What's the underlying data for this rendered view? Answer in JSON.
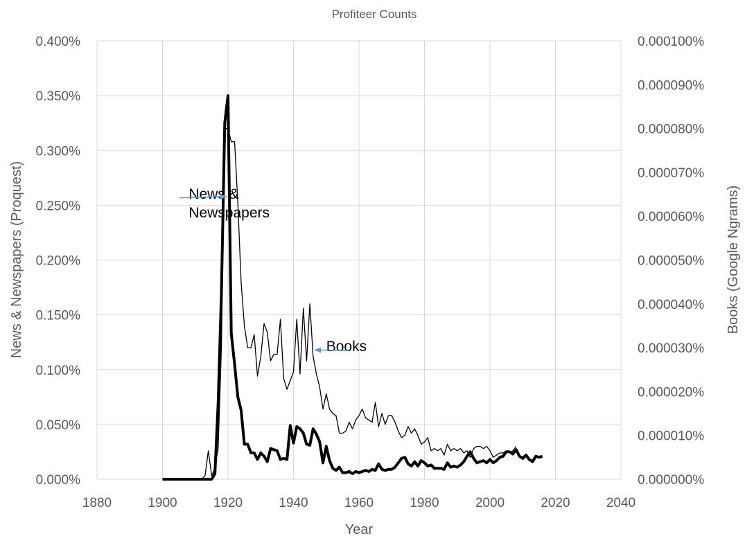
{
  "chart_data": {
    "type": "line",
    "title": "Profiteer Counts",
    "xlabel": "Year",
    "ylabel_left": "News & Newspapers (Proquest)",
    "ylabel_right": "Books (Google Ngrams)",
    "xlim": [
      1880,
      2040
    ],
    "x_ticks": [
      1880,
      1900,
      1920,
      1940,
      1960,
      1980,
      2000,
      2020,
      2040
    ],
    "x_tick_labels": [
      "1880",
      "1900",
      "1920",
      "1940",
      "1960",
      "1980",
      "2000",
      "2020",
      "2040"
    ],
    "ylim_left": [
      0,
      0.4
    ],
    "y_ticks_left": [
      0,
      0.05,
      0.1,
      0.15,
      0.2,
      0.25,
      0.3,
      0.35,
      0.4
    ],
    "y_tick_labels_left": [
      "0.000%",
      "0.050%",
      "0.100%",
      "0.150%",
      "0.200%",
      "0.250%",
      "0.300%",
      "0.350%",
      "0.400%"
    ],
    "ylim_right": [
      0,
      0.0001
    ],
    "y_ticks_right": [
      0,
      1e-05,
      2e-05,
      3e-05,
      4e-05,
      5e-05,
      6e-05,
      7e-05,
      8e-05,
      9e-05,
      0.0001
    ],
    "y_tick_labels_right": [
      "0.000000%",
      "0.000010%",
      "0.000020%",
      "0.000030%",
      "0.000040%",
      "0.000050%",
      "0.000060%",
      "0.000070%",
      "0.000080%",
      "0.000090%",
      "0.000100%"
    ],
    "grid": true,
    "series": [
      {
        "id": "news",
        "axis": "left",
        "color": "#000000",
        "style": "thick",
        "x": [
          1900,
          1901,
          1902,
          1903,
          1904,
          1905,
          1906,
          1907,
          1908,
          1909,
          1910,
          1911,
          1912,
          1913,
          1914,
          1915,
          1916,
          1917,
          1918,
          1919,
          1920,
          1921,
          1922,
          1923,
          1924,
          1925,
          1926,
          1927,
          1928,
          1929,
          1930,
          1931,
          1932,
          1933,
          1934,
          1935,
          1936,
          1937,
          1938,
          1939,
          1940,
          1941,
          1942,
          1943,
          1944,
          1945,
          1946,
          1947,
          1948,
          1949,
          1950,
          1951,
          1952,
          1953,
          1954,
          1955,
          1956,
          1957,
          1958,
          1959,
          1960,
          1961,
          1962,
          1963,
          1964,
          1965,
          1966,
          1967,
          1968,
          1969,
          1970,
          1971,
          1972,
          1973,
          1974,
          1975,
          1976,
          1977,
          1978,
          1979,
          1980,
          1981,
          1982,
          1983,
          1984,
          1985,
          1986,
          1987,
          1988,
          1989,
          1990,
          1991,
          1992,
          1993,
          1994,
          1995,
          1996,
          1997,
          1998,
          1999,
          2000,
          2001,
          2002,
          2003,
          2004,
          2005,
          2006,
          2007,
          2008,
          2009,
          2010,
          2011,
          2012,
          2013,
          2014,
          2015,
          2016
        ],
        "values": [
          0,
          0,
          0,
          0,
          0,
          0,
          0,
          0,
          0,
          0,
          0,
          0,
          0,
          0,
          0,
          0,
          0.005,
          0.07,
          0.17,
          0.325,
          0.35,
          0.133,
          0.105,
          0.075,
          0.063,
          0.032,
          0.032,
          0.024,
          0.024,
          0.018,
          0.024,
          0.021,
          0.016,
          0.028,
          0.027,
          0.026,
          0.018,
          0.019,
          0.018,
          0.049,
          0.033,
          0.048,
          0.046,
          0.042,
          0.032,
          0.031,
          0.046,
          0.041,
          0.034,
          0.015,
          0.03,
          0.017,
          0.01,
          0.008,
          0.011,
          0.006,
          0.006,
          0.007,
          0.005,
          0.007,
          0.006,
          0.007,
          0.008,
          0.007,
          0.009,
          0.008,
          0.014,
          0.009,
          0.008,
          0.009,
          0.009,
          0.011,
          0.015,
          0.019,
          0.02,
          0.014,
          0.012,
          0.016,
          0.012,
          0.017,
          0.015,
          0.012,
          0.013,
          0.01,
          0.01,
          0.01,
          0.009,
          0.015,
          0.011,
          0.012,
          0.011,
          0.013,
          0.016,
          0.021,
          0.025,
          0.019,
          0.015,
          0.016,
          0.017,
          0.015,
          0.018,
          0.015,
          0.017,
          0.02,
          0.021,
          0.025,
          0.025,
          0.023,
          0.027,
          0.021,
          0.019,
          0.022,
          0.018,
          0.016,
          0.021,
          0.02,
          0.021
        ]
      },
      {
        "id": "books",
        "axis": "right",
        "color": "#000000",
        "style": "thin",
        "x": [
          1900,
          1901,
          1902,
          1903,
          1904,
          1905,
          1906,
          1907,
          1908,
          1909,
          1910,
          1911,
          1912,
          1913,
          1914,
          1915,
          1916,
          1917,
          1918,
          1919,
          1920,
          1921,
          1922,
          1923,
          1924,
          1925,
          1926,
          1927,
          1928,
          1929,
          1930,
          1931,
          1932,
          1933,
          1934,
          1935,
          1936,
          1937,
          1938,
          1939,
          1940,
          1941,
          1942,
          1943,
          1944,
          1945,
          1946,
          1947,
          1948,
          1949,
          1950,
          1951,
          1952,
          1953,
          1954,
          1955,
          1956,
          1957,
          1958,
          1959,
          1960,
          1961,
          1962,
          1963,
          1964,
          1965,
          1966,
          1967,
          1968,
          1969,
          1970,
          1971,
          1972,
          1973,
          1974,
          1975,
          1976,
          1977,
          1978,
          1979,
          1980,
          1981,
          1982,
          1983,
          1984,
          1985,
          1986,
          1987,
          1988,
          1989,
          1990,
          1991,
          1992,
          1993,
          1994,
          1995,
          1996,
          1997,
          1998,
          1999,
          2000,
          2001,
          2002,
          2003,
          2004,
          2005,
          2006,
          2007,
          2008
        ],
        "values": [
          0,
          0,
          0,
          0,
          0,
          0,
          0,
          0,
          0,
          0,
          0,
          0,
          0,
          8e-07,
          6.5e-06,
          8e-07,
          2.5e-06,
          7e-06,
          3e-05,
          8e-05,
          8e-05,
          7.7e-05,
          7.7e-05,
          6.3e-05,
          4.5e-05,
          3.5e-05,
          3e-05,
          3e-05,
          3.3e-05,
          2.35e-05,
          2.8e-05,
          3.55e-05,
          3.35e-05,
          2.7e-05,
          2.85e-05,
          2.85e-05,
          3.65e-05,
          2.3e-05,
          2.05e-05,
          2.25e-05,
          2.45e-05,
          3.65e-05,
          2.4e-05,
          3.9e-05,
          2.7e-05,
          4e-05,
          2.8e-05,
          2.4e-05,
          2.1e-05,
          1.6e-05,
          1.95e-05,
          1.6e-05,
          1.5e-05,
          1.45e-05,
          1.05e-05,
          1.05e-05,
          1.1e-05,
          1.3e-05,
          1.15e-05,
          1.35e-05,
          1.45e-05,
          1.6e-05,
          1.4e-05,
          1.35e-05,
          1.3e-05,
          1.75e-05,
          1.2e-05,
          1.5e-05,
          1.25e-05,
          1.45e-05,
          1.45e-05,
          1.3e-05,
          1.1e-05,
          9.5e-06,
          1e-05,
          1.2e-05,
          1.05e-05,
          1.15e-05,
          1e-05,
          8e-06,
          8.5e-06,
          9.5e-06,
          6.5e-06,
          7e-06,
          6.5e-06,
          7e-06,
          5.5e-06,
          8e-06,
          6.5e-06,
          7e-06,
          6.5e-06,
          7e-06,
          6e-06,
          6.5e-06,
          5e-06,
          7e-06,
          7.5e-06,
          7.5e-06,
          7e-06,
          7.5e-06,
          6.5e-06,
          5e-06,
          5.5e-06,
          6e-06,
          6e-06,
          6.5e-06,
          6e-06,
          6.5e-06,
          7.5e-06
        ]
      }
    ],
    "annotations": [
      {
        "id": "news",
        "lines": [
          "News &",
          "Newspapers"
        ],
        "x": 1908,
        "y": 0.256,
        "arrow_to": [
          1919.5,
          0.258
        ]
      },
      {
        "id": "books",
        "lines": [
          "Books"
        ],
        "x": 1950,
        "y": 0.117,
        "arrow_to": [
          1946.5,
          0.118
        ]
      }
    ]
  }
}
